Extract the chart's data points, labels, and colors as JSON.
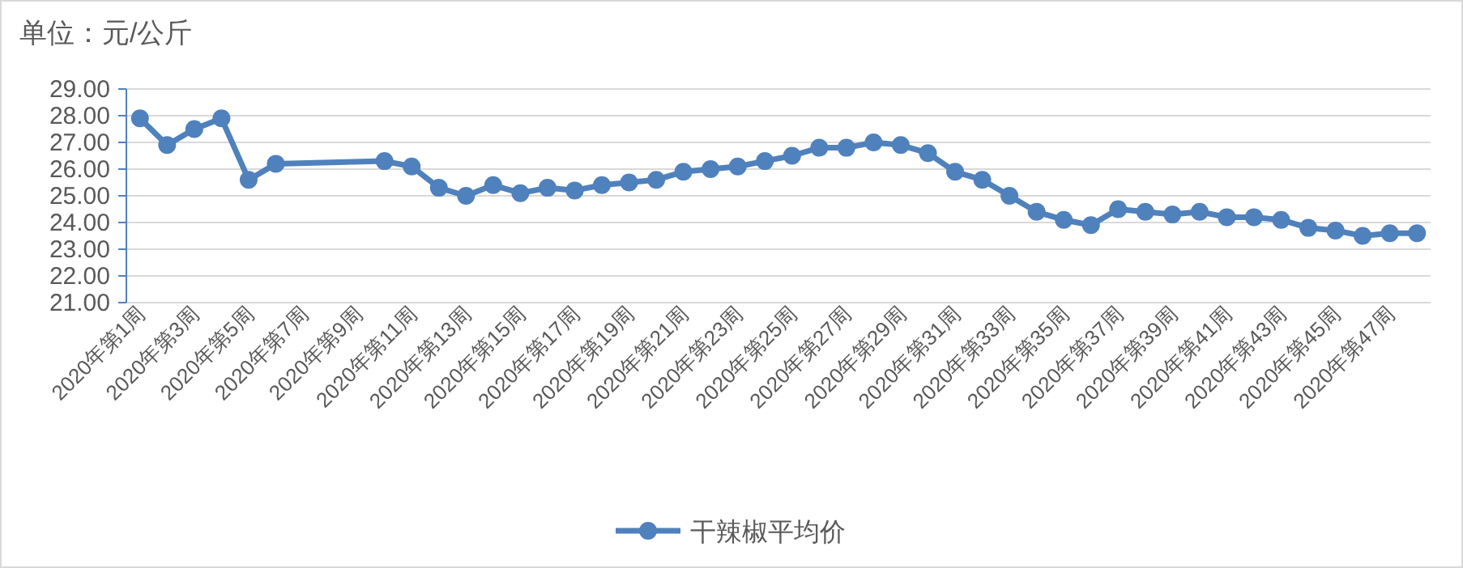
{
  "chart_data": {
    "type": "line",
    "title": "单位：元/公斤",
    "categories": [
      "2020年第1周",
      null,
      "2020年第3周",
      null,
      "2020年第5周",
      null,
      "2020年第7周",
      null,
      "2020年第9周",
      null,
      "2020年第11周",
      null,
      "2020年第13周",
      null,
      "2020年第15周",
      null,
      "2020年第17周",
      null,
      "2020年第19周",
      null,
      "2020年第21周",
      null,
      "2020年第23周",
      null,
      "2020年第25周",
      null,
      "2020年第27周",
      null,
      "2020年第29周",
      null,
      "2020年第31周",
      null,
      "2020年第33周",
      null,
      "2020年第35周",
      null,
      "2020年第37周",
      null,
      "2020年第39周",
      null,
      "2020年第41周",
      null,
      "2020年第43周",
      null,
      "2020年第45周",
      null,
      "2020年第47周",
      null
    ],
    "series": [
      {
        "name": "干辣椒平均价",
        "color": "#4f81bd",
        "values": [
          27.9,
          26.9,
          27.5,
          27.9,
          25.6,
          26.2,
          null,
          null,
          null,
          26.3,
          26.1,
          25.3,
          25.0,
          25.4,
          25.1,
          25.3,
          25.2,
          25.4,
          25.5,
          25.6,
          25.9,
          26.0,
          26.1,
          26.3,
          26.5,
          26.8,
          26.8,
          27.0,
          26.9,
          26.6,
          25.9,
          25.6,
          25.0,
          24.4,
          24.1,
          23.9,
          24.5,
          24.4,
          24.3,
          24.4,
          24.2,
          24.2,
          24.1,
          23.8,
          23.7,
          23.5,
          23.6,
          23.6
        ]
      }
    ],
    "ylim": [
      21,
      29
    ],
    "yticks": [
      {
        "value": 21,
        "label": "21.00"
      },
      {
        "value": 22,
        "label": "22.00"
      },
      {
        "value": 23,
        "label": "23.00"
      },
      {
        "value": 24,
        "label": "24.00"
      },
      {
        "value": 25,
        "label": "25.00"
      },
      {
        "value": 26,
        "label": "26.00"
      },
      {
        "value": 27,
        "label": "27.00"
      },
      {
        "value": 28,
        "label": "28.00"
      },
      {
        "value": 29,
        "label": "29.00"
      }
    ],
    "grid": "y",
    "legend": "bottom",
    "marker": "circle",
    "line_style": "solid"
  }
}
